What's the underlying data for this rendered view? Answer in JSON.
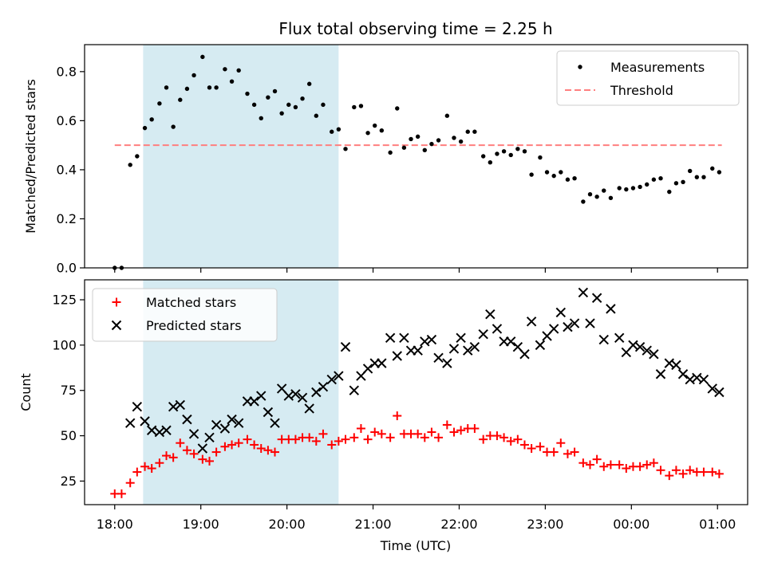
{
  "chart_data": {
    "title": "Flux total observing time = 2.25 h",
    "xlabel": "Time (UTC)",
    "x_unit": "hours (UTC)",
    "x_ticks": [
      {
        "value": 18,
        "label": "18:00"
      },
      {
        "value": 19,
        "label": "19:00"
      },
      {
        "value": 20,
        "label": "20:00"
      },
      {
        "value": 21,
        "label": "21:00"
      },
      {
        "value": 22,
        "label": "22:00"
      },
      {
        "value": 23,
        "label": "23:00"
      },
      {
        "value": 24,
        "label": "00:00"
      },
      {
        "value": 25,
        "label": "01:00"
      }
    ],
    "xlim": [
      17.65,
      25.35
    ],
    "shaded_span": {
      "x0": 18.33,
      "x1": 20.6,
      "color": "#add8e6"
    },
    "top": {
      "type": "scatter",
      "ylabel": "Matched/Predicted stars",
      "ylim": [
        0,
        0.91
      ],
      "yticks": [
        0,
        0.2,
        0.4,
        0.6,
        0.8
      ],
      "ytick_labels": [
        "0.0",
        "0.2",
        "0.4",
        "0.6",
        "0.8"
      ],
      "legend": {
        "placement": "upper right",
        "measurements_label": "Measurements",
        "threshold_label": "Threshold"
      },
      "threshold": {
        "value": 0.5,
        "x0": 18.0,
        "x1": 25.05,
        "color": "#ff7f7f"
      },
      "measurements": {
        "color": "#000000",
        "points": [
          [
            18.0,
            0.0
          ],
          [
            18.08,
            0.0
          ],
          [
            18.18,
            0.42
          ],
          [
            18.26,
            0.455
          ],
          [
            18.35,
            0.57
          ],
          [
            18.43,
            0.605
          ],
          [
            18.52,
            0.67
          ],
          [
            18.6,
            0.735
          ],
          [
            18.68,
            0.575
          ],
          [
            18.76,
            0.685
          ],
          [
            18.84,
            0.73
          ],
          [
            18.92,
            0.785
          ],
          [
            19.02,
            0.86
          ],
          [
            19.1,
            0.735
          ],
          [
            19.18,
            0.735
          ],
          [
            19.28,
            0.81
          ],
          [
            19.36,
            0.76
          ],
          [
            19.44,
            0.805
          ],
          [
            19.54,
            0.71
          ],
          [
            19.62,
            0.665
          ],
          [
            19.7,
            0.61
          ],
          [
            19.78,
            0.695
          ],
          [
            19.86,
            0.72
          ],
          [
            19.94,
            0.63
          ],
          [
            20.02,
            0.665
          ],
          [
            20.1,
            0.655
          ],
          [
            20.18,
            0.69
          ],
          [
            20.26,
            0.75
          ],
          [
            20.34,
            0.62
          ],
          [
            20.42,
            0.665
          ],
          [
            20.52,
            0.555
          ],
          [
            20.6,
            0.565
          ],
          [
            20.68,
            0.485
          ],
          [
            20.78,
            0.655
          ],
          [
            20.86,
            0.66
          ],
          [
            20.94,
            0.55
          ],
          [
            21.02,
            0.58
          ],
          [
            21.1,
            0.56
          ],
          [
            21.2,
            0.47
          ],
          [
            21.28,
            0.65
          ],
          [
            21.36,
            0.49
          ],
          [
            21.44,
            0.525
          ],
          [
            21.52,
            0.535
          ],
          [
            21.6,
            0.48
          ],
          [
            21.68,
            0.505
          ],
          [
            21.76,
            0.52
          ],
          [
            21.86,
            0.62
          ],
          [
            21.94,
            0.53
          ],
          [
            22.02,
            0.515
          ],
          [
            22.1,
            0.555
          ],
          [
            22.18,
            0.555
          ],
          [
            22.28,
            0.455
          ],
          [
            22.36,
            0.43
          ],
          [
            22.44,
            0.465
          ],
          [
            22.52,
            0.475
          ],
          [
            22.6,
            0.46
          ],
          [
            22.68,
            0.485
          ],
          [
            22.76,
            0.475
          ],
          [
            22.84,
            0.38
          ],
          [
            22.94,
            0.45
          ],
          [
            23.02,
            0.39
          ],
          [
            23.1,
            0.375
          ],
          [
            23.18,
            0.39
          ],
          [
            23.26,
            0.36
          ],
          [
            23.34,
            0.365
          ],
          [
            23.44,
            0.27
          ],
          [
            23.52,
            0.3
          ],
          [
            23.6,
            0.29
          ],
          [
            23.68,
            0.315
          ],
          [
            23.76,
            0.285
          ],
          [
            23.86,
            0.325
          ],
          [
            23.94,
            0.32
          ],
          [
            24.02,
            0.325
          ],
          [
            24.1,
            0.33
          ],
          [
            24.18,
            0.34
          ],
          [
            24.26,
            0.36
          ],
          [
            24.34,
            0.365
          ],
          [
            24.44,
            0.31
          ],
          [
            24.52,
            0.345
          ],
          [
            24.6,
            0.35
          ],
          [
            24.68,
            0.395
          ],
          [
            24.76,
            0.37
          ],
          [
            24.84,
            0.37
          ],
          [
            24.94,
            0.405
          ],
          [
            25.02,
            0.39
          ]
        ]
      }
    },
    "bottom": {
      "type": "scatter",
      "ylabel": "Count",
      "ylim": [
        12,
        136
      ],
      "yticks": [
        25,
        50,
        75,
        100,
        125
      ],
      "ytick_labels": [
        "25",
        "50",
        "75",
        "100",
        "125"
      ],
      "legend": {
        "placement": "upper left"
      },
      "series": [
        {
          "name": "Matched stars",
          "marker": "plus",
          "color": "#ff0000",
          "points": [
            [
              18.0,
              18
            ],
            [
              18.08,
              18
            ],
            [
              18.18,
              24
            ],
            [
              18.26,
              30
            ],
            [
              18.35,
              33
            ],
            [
              18.43,
              32
            ],
            [
              18.52,
              35
            ],
            [
              18.6,
              39
            ],
            [
              18.68,
              38
            ],
            [
              18.76,
              46
            ],
            [
              18.84,
              42
            ],
            [
              18.92,
              40
            ],
            [
              19.02,
              37
            ],
            [
              19.1,
              36
            ],
            [
              19.18,
              41
            ],
            [
              19.28,
              44
            ],
            [
              19.36,
              45
            ],
            [
              19.44,
              46
            ],
            [
              19.54,
              48
            ],
            [
              19.62,
              45
            ],
            [
              19.7,
              43
            ],
            [
              19.78,
              42
            ],
            [
              19.86,
              41
            ],
            [
              19.94,
              48
            ],
            [
              20.02,
              48
            ],
            [
              20.1,
              48
            ],
            [
              20.18,
              49
            ],
            [
              20.26,
              49
            ],
            [
              20.34,
              47
            ],
            [
              20.42,
              51
            ],
            [
              20.52,
              45
            ],
            [
              20.6,
              47
            ],
            [
              20.68,
              48
            ],
            [
              20.78,
              49
            ],
            [
              20.86,
              54
            ],
            [
              20.94,
              48
            ],
            [
              21.02,
              52
            ],
            [
              21.1,
              51
            ],
            [
              21.2,
              49
            ],
            [
              21.28,
              61
            ],
            [
              21.36,
              51
            ],
            [
              21.44,
              51
            ],
            [
              21.52,
              51
            ],
            [
              21.6,
              49
            ],
            [
              21.68,
              52
            ],
            [
              21.76,
              49
            ],
            [
              21.86,
              56
            ],
            [
              21.94,
              52
            ],
            [
              22.02,
              53
            ],
            [
              22.1,
              54
            ],
            [
              22.18,
              54
            ],
            [
              22.28,
              48
            ],
            [
              22.36,
              50
            ],
            [
              22.44,
              50
            ],
            [
              22.52,
              49
            ],
            [
              22.6,
              47
            ],
            [
              22.68,
              48
            ],
            [
              22.76,
              45
            ],
            [
              22.84,
              43
            ],
            [
              22.94,
              44
            ],
            [
              23.02,
              41
            ],
            [
              23.1,
              41
            ],
            [
              23.18,
              46
            ],
            [
              23.26,
              40
            ],
            [
              23.34,
              41
            ],
            [
              23.44,
              35
            ],
            [
              23.52,
              34
            ],
            [
              23.6,
              37
            ],
            [
              23.68,
              33
            ],
            [
              23.76,
              34
            ],
            [
              23.86,
              34
            ],
            [
              23.94,
              32
            ],
            [
              24.02,
              33
            ],
            [
              24.1,
              33
            ],
            [
              24.18,
              34
            ],
            [
              24.26,
              35
            ],
            [
              24.34,
              31
            ],
            [
              24.44,
              28
            ],
            [
              24.52,
              31
            ],
            [
              24.6,
              29
            ],
            [
              24.68,
              31
            ],
            [
              24.76,
              30
            ],
            [
              24.84,
              30
            ],
            [
              24.94,
              30
            ],
            [
              25.02,
              29
            ]
          ]
        },
        {
          "name": "Predicted stars",
          "marker": "x",
          "color": "#000000",
          "points": [
            [
              18.18,
              57
            ],
            [
              18.26,
              66
            ],
            [
              18.35,
              58
            ],
            [
              18.43,
              53
            ],
            [
              18.52,
              52
            ],
            [
              18.6,
              53
            ],
            [
              18.68,
              66
            ],
            [
              18.76,
              67
            ],
            [
              18.84,
              59
            ],
            [
              18.92,
              51
            ],
            [
              19.02,
              43
            ],
            [
              19.1,
              49
            ],
            [
              19.18,
              56
            ],
            [
              19.28,
              54
            ],
            [
              19.36,
              59
            ],
            [
              19.44,
              57
            ],
            [
              19.54,
              69
            ],
            [
              19.62,
              69
            ],
            [
              19.7,
              72
            ],
            [
              19.78,
              63
            ],
            [
              19.86,
              57
            ],
            [
              19.94,
              76
            ],
            [
              20.02,
              72
            ],
            [
              20.1,
              73
            ],
            [
              20.18,
              71
            ],
            [
              20.26,
              65
            ],
            [
              20.34,
              74
            ],
            [
              20.42,
              77
            ],
            [
              20.52,
              81
            ],
            [
              20.6,
              83
            ],
            [
              20.68,
              99
            ],
            [
              20.78,
              75
            ],
            [
              20.86,
              83
            ],
            [
              20.94,
              87
            ],
            [
              21.02,
              90
            ],
            [
              21.1,
              90
            ],
            [
              21.2,
              104
            ],
            [
              21.28,
              94
            ],
            [
              21.36,
              104
            ],
            [
              21.44,
              97
            ],
            [
              21.52,
              97
            ],
            [
              21.6,
              102
            ],
            [
              21.68,
              103
            ],
            [
              21.76,
              93
            ],
            [
              21.86,
              90
            ],
            [
              21.94,
              98
            ],
            [
              22.02,
              104
            ],
            [
              22.1,
              97
            ],
            [
              22.18,
              99
            ],
            [
              22.28,
              106
            ],
            [
              22.36,
              117
            ],
            [
              22.44,
              109
            ],
            [
              22.52,
              102
            ],
            [
              22.6,
              102
            ],
            [
              22.68,
              99
            ],
            [
              22.76,
              95
            ],
            [
              22.84,
              113
            ],
            [
              22.94,
              100
            ],
            [
              23.02,
              105
            ],
            [
              23.1,
              109
            ],
            [
              23.18,
              118
            ],
            [
              23.26,
              110
            ],
            [
              23.34,
              112
            ],
            [
              23.44,
              129
            ],
            [
              23.52,
              112
            ],
            [
              23.6,
              126
            ],
            [
              23.68,
              103
            ],
            [
              23.76,
              120
            ],
            [
              23.86,
              104
            ],
            [
              23.94,
              96
            ],
            [
              24.02,
              100
            ],
            [
              24.1,
              99
            ],
            [
              24.18,
              97
            ],
            [
              24.26,
              95
            ],
            [
              24.34,
              84
            ],
            [
              24.44,
              90
            ],
            [
              24.52,
              89
            ],
            [
              24.6,
              84
            ],
            [
              24.68,
              81
            ],
            [
              24.76,
              82
            ],
            [
              24.84,
              81
            ],
            [
              24.94,
              76
            ],
            [
              25.02,
              74
            ]
          ]
        }
      ]
    }
  }
}
